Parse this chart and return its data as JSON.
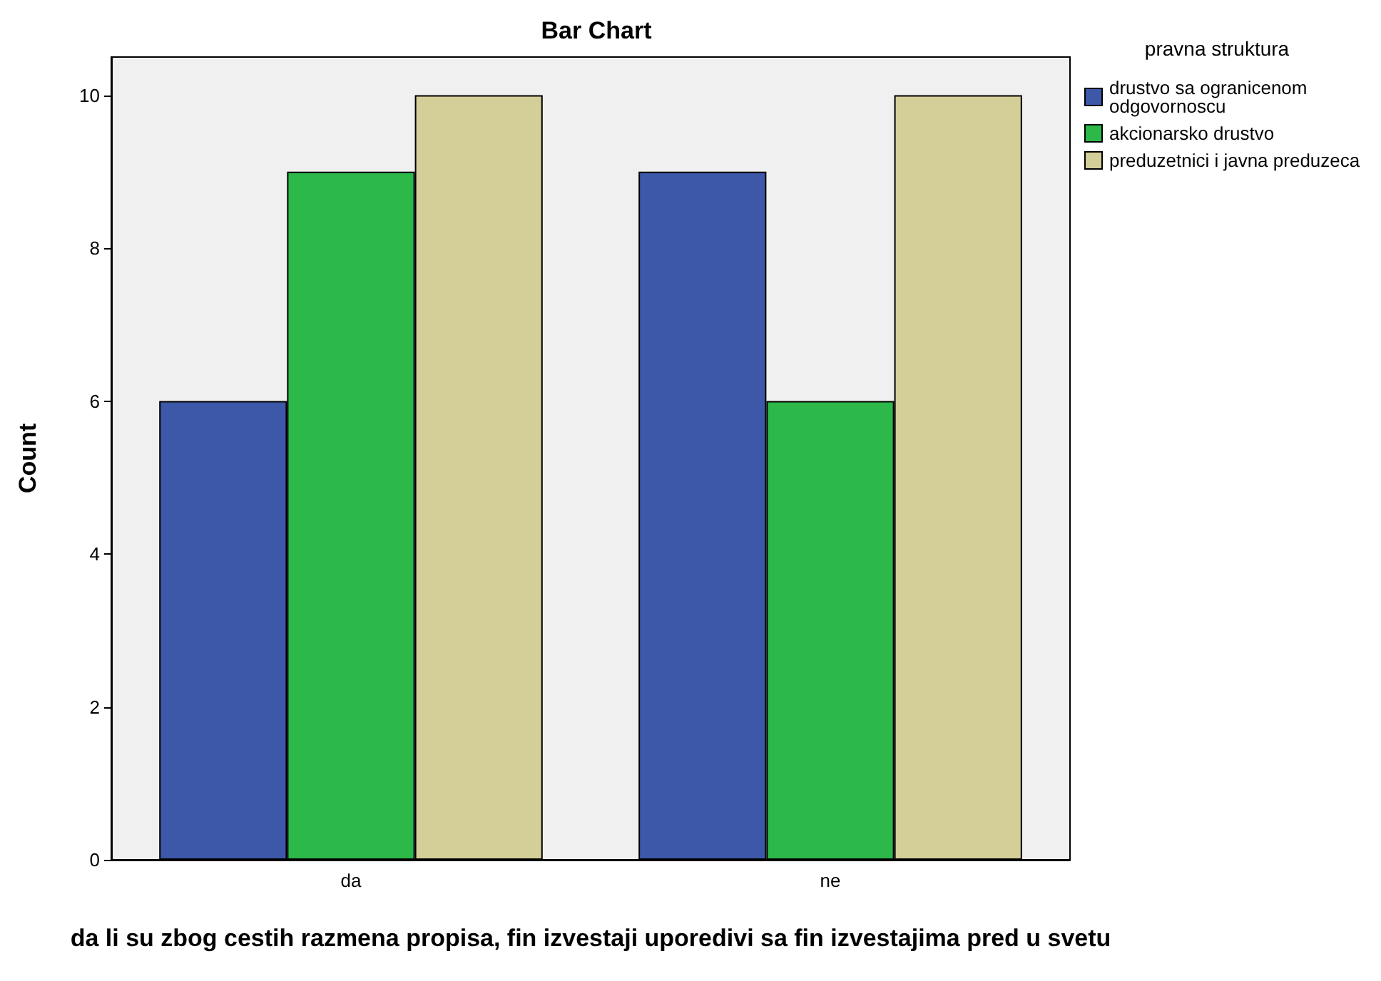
{
  "chart_data": {
    "type": "bar",
    "title": "Bar Chart",
    "xlabel": "da li su zbog cestih razmena propisa, fin izvestaji uporedivi sa fin izvestajima pred u svetu",
    "ylabel": "Count",
    "legend_title": "pravna struktura",
    "categories": [
      "da",
      "ne"
    ],
    "series": [
      {
        "name": "drustvo sa ogranicenom odgovornoscu",
        "color": "#3d58a8",
        "values": [
          6,
          9
        ]
      },
      {
        "name": "akcionarsko drustvo",
        "color": "#2db84a",
        "values": [
          9,
          6
        ]
      },
      {
        "name": "preduzetnici i javna preduzeca",
        "color": "#d4cf98",
        "values": [
          10,
          10
        ]
      }
    ],
    "ylim": [
      0,
      10.5
    ],
    "yticks": [
      0,
      2,
      4,
      6,
      8,
      10
    ],
    "grid": false,
    "legend": "right"
  }
}
